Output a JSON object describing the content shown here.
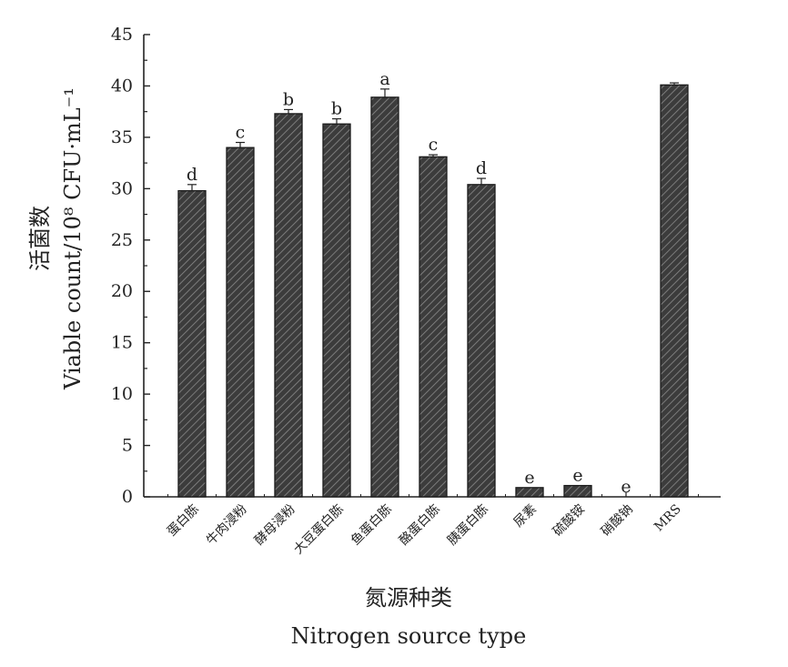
{
  "chart_data": {
    "type": "bar",
    "categories": [
      "蛋白胨",
      "牛肉浸粉",
      "酵母浸粉",
      "大豆蛋白胨",
      "鱼蛋白胨",
      "酪蛋白胨",
      "胰蛋白胨",
      "尿素",
      "硫酸铵",
      "硝酸钠",
      "MRS"
    ],
    "values": [
      29.8,
      34.0,
      37.3,
      36.3,
      38.9,
      33.1,
      30.4,
      0.9,
      1.1,
      0.0,
      40.1
    ],
    "errors": [
      0.6,
      0.5,
      0.4,
      0.5,
      0.8,
      0.2,
      0.6,
      0.0,
      0.0,
      0.0,
      0.2
    ],
    "significance": [
      "d",
      "c",
      "b",
      "b",
      "a",
      "c",
      "d",
      "e",
      "e",
      "e",
      ""
    ],
    "ylabel_cn": "活菌数",
    "ylabel": "Viable count/10⁸ CFU·mL⁻¹",
    "xlabel_cn": "氮源种类",
    "xlabel": "Nitrogen source type",
    "ylim": [
      0,
      45
    ],
    "yticks": [
      0,
      5,
      10,
      15,
      20,
      25,
      30,
      35,
      40,
      45
    ],
    "bar_fill": "#3c3c3c",
    "hatch": "diagonal",
    "grid": false
  }
}
